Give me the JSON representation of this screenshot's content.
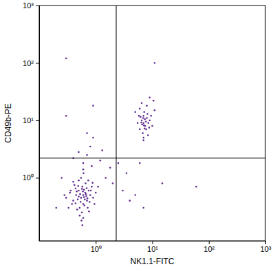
{
  "chart_data": {
    "type": "scatter",
    "x_label": "NK1.1-FITC",
    "y_label": "CD49b-PE",
    "log": true,
    "color": "#5e2a8f",
    "xlim": [
      0.1,
      1000
    ],
    "ylim": [
      0.08,
      1000
    ],
    "xticks": [
      {
        "value": 1,
        "label": "10⁰"
      },
      {
        "value": 10,
        "label": "10¹"
      },
      {
        "value": 100,
        "label": "10²"
      },
      {
        "value": 1000,
        "label": "10³"
      }
    ],
    "yticks": [
      {
        "value": 1,
        "label": "10⁰"
      },
      {
        "value": 10,
        "label": "10¹"
      },
      {
        "value": 100,
        "label": "10²"
      },
      {
        "value": 1000,
        "label": "10³"
      }
    ],
    "quadrant_x": 2.3,
    "quadrant_y": 2.2,
    "x": [
      0.6,
      0.55,
      0.65,
      0.5,
      0.7,
      0.45,
      0.6,
      0.58,
      0.75,
      0.4,
      0.52,
      0.68,
      0.62,
      0.48,
      0.8,
      0.35,
      0.57,
      0.66,
      0.72,
      0.5,
      0.44,
      0.9,
      0.6,
      0.55,
      0.38,
      0.85,
      0.3,
      0.64,
      0.53,
      0.59,
      0.47,
      0.78,
      0.42,
      1.0,
      0.61,
      0.56,
      0.69,
      0.33,
      0.74,
      0.5,
      0.63,
      0.46,
      0.95,
      0.54,
      0.67,
      0.4,
      0.58,
      0.82,
      0.49,
      0.71,
      1.1,
      0.36,
      0.6,
      0.52,
      0.76,
      0.44,
      0.88,
      0.62,
      0.57,
      0.28,
      0.6,
      0.7,
      0.8,
      0.9,
      0.5,
      1.2,
      0.4,
      1.5,
      2.0,
      3.0,
      4,
      1.8,
      0.7,
      0.3,
      1.3,
      2.5,
      0.85,
      5,
      7,
      3.5,
      11,
      0.3,
      0.9,
      0.2,
      0.25,
      60,
      15,
      6,
      7,
      6.5,
      7.5,
      8,
      6,
      7,
      8.5,
      6.8,
      7.2,
      9,
      5.5,
      7.8,
      6.2,
      8.2,
      7,
      10,
      6.6,
      7.4,
      5.8,
      9.5,
      8,
      6.5,
      7,
      11,
      9,
      6,
      7.7,
      8.8,
      6.9,
      7.3,
      10.5,
      5,
      8.4,
      6.4,
      7.1
    ],
    "y": [
      0.5,
      0.45,
      0.55,
      0.6,
      0.4,
      0.5,
      0.35,
      0.7,
      0.6,
      0.4,
      0.3,
      0.48,
      0.62,
      0.42,
      0.5,
      0.55,
      0.25,
      0.8,
      0.3,
      0.9,
      0.65,
      0.45,
      0.2,
      1.0,
      0.35,
      0.7,
      0.45,
      0.42,
      0.52,
      0.58,
      0.28,
      0.38,
      0.75,
      0.55,
      1.2,
      0.18,
      0.66,
      0.3,
      0.9,
      0.47,
      0.33,
      0.58,
      0.35,
      0.38,
      0.52,
      0.85,
      0.15,
      0.6,
      0.72,
      0.44,
      0.7,
      0.6,
      1.4,
      0.22,
      0.26,
      0.36,
      0.82,
      0.46,
      0.64,
      0.5,
      1.8,
      2.5,
      3.5,
      5,
      2.8,
      2.0,
      2.2,
      1.0,
      0.8,
      0.6,
      0.4,
      1.5,
      6,
      12,
      3.0,
      1.8,
      1.6,
      0.5,
      0.3,
      1.2,
      100,
      120,
      18,
      0.3,
      1.0,
      0.7,
      0.8,
      1.8,
      9,
      10,
      8,
      11,
      7,
      12,
      9,
      6,
      14,
      10,
      9,
      7,
      11.5,
      13,
      5,
      8,
      8.5,
      10.5,
      12,
      12,
      18,
      20,
      4.5,
      15,
      25,
      16,
      9.5,
      7.5,
      11,
      7.2,
      22,
      14,
      5.5,
      9.2,
      8.2
    ]
  }
}
